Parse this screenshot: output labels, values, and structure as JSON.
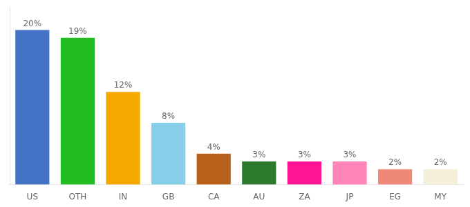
{
  "chart_data": {
    "type": "bar",
    "categories": [
      "US",
      "OTH",
      "IN",
      "GB",
      "CA",
      "AU",
      "ZA",
      "JP",
      "EG",
      "MY"
    ],
    "values": [
      20,
      19,
      12,
      8,
      4,
      3,
      3,
      3,
      2,
      2
    ],
    "value_labels": [
      "20%",
      "19%",
      "12%",
      "8%",
      "4%",
      "3%",
      "3%",
      "3%",
      "2%",
      "2%"
    ],
    "colors": [
      "#4472c4",
      "#22bb22",
      "#f5a800",
      "#87ceeb",
      "#b8601a",
      "#2d7a2d",
      "#ff1493",
      "#ff85b8",
      "#f08878",
      "#f5f0dc"
    ],
    "ylim": [
      0,
      23
    ],
    "data_labels": true,
    "tick_labels": "x",
    "grid": false
  }
}
